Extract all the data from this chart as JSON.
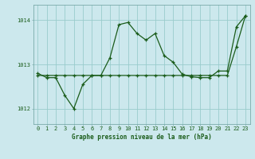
{
  "title": "Graphe pression niveau de la mer (hPa)",
  "x_hours": [
    0,
    1,
    2,
    3,
    4,
    5,
    6,
    7,
    8,
    9,
    10,
    11,
    12,
    13,
    14,
    15,
    16,
    17,
    18,
    19,
    20,
    21,
    22,
    23
  ],
  "pressure_main": [
    1012.8,
    1012.7,
    1012.7,
    1012.3,
    1012.0,
    1012.55,
    1012.75,
    1012.75,
    1013.15,
    1013.9,
    1013.95,
    1013.7,
    1013.55,
    1013.7,
    1013.2,
    1013.05,
    1012.78,
    1012.72,
    1012.7,
    1012.7,
    1012.85,
    1012.85,
    1013.85,
    1014.1
  ],
  "pressure_trend": [
    1012.75,
    1012.75,
    1012.75,
    1012.75,
    1012.75,
    1012.75,
    1012.75,
    1012.75,
    1012.75,
    1012.75,
    1012.75,
    1012.75,
    1012.75,
    1012.75,
    1012.75,
    1012.75,
    1012.75,
    1012.75,
    1012.75,
    1012.75,
    1012.75,
    1012.75,
    1013.4,
    1014.1
  ],
  "background_color": "#cce8ed",
  "grid_color": "#99cccc",
  "line_color": "#1a5c1a",
  "yticks": [
    1012.0,
    1013.0,
    1014.0
  ],
  "ylabel_left": [
    "1012",
    "1013",
    "1014"
  ],
  "ylim": [
    1011.65,
    1014.35
  ],
  "xlim": [
    -0.5,
    23.5
  ]
}
